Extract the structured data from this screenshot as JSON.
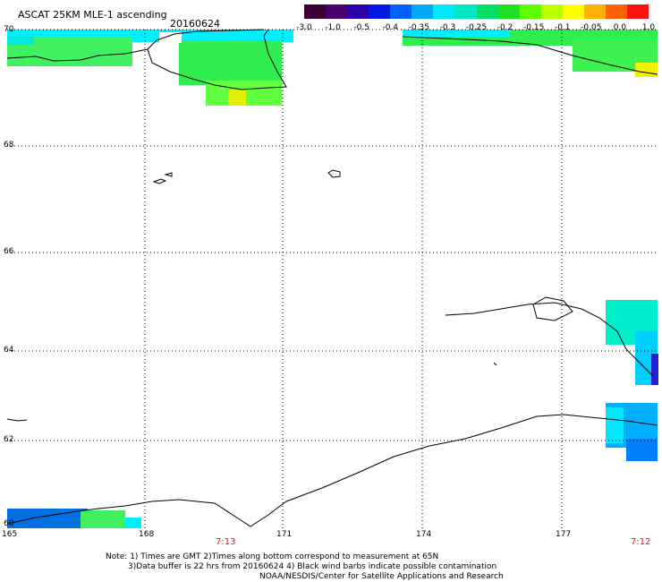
{
  "header": {
    "title": "ASCAT 25KM MLE-1 ascending",
    "date": "20160624"
  },
  "colorbar": {
    "colors": [
      "#3a0033",
      "#4a006a",
      "#2a00a8",
      "#0018e0",
      "#0060ff",
      "#00a8ff",
      "#00e8ff",
      "#00e8c0",
      "#00e060",
      "#20e020",
      "#60ff00",
      "#c0ff00",
      "#ffff00",
      "#ffb000",
      "#ff6000",
      "#ff1010"
    ],
    "labels": [
      "-3.0",
      "-1.0",
      "-0.5",
      "-0.4",
      "-0.35",
      "-0.3",
      "-0.25",
      "-0.2",
      "-0.15",
      "-0.1",
      "-0.05",
      "0.0",
      "1.0"
    ]
  },
  "axes": {
    "lat_labels": [
      "70",
      "68",
      "66",
      "64",
      "62",
      "60"
    ],
    "lon_labels": [
      "165",
      "168",
      "171",
      "174",
      "177"
    ],
    "times": [
      "7:13",
      "7:12"
    ]
  },
  "notes": {
    "line1": "Note: 1) Times are GMT 2)Times along bottom correspond to measurement at 65N",
    "line2": "3)Data buffer is 22 hrs from 20160624 4) Black wind barbs indicate possible contamination",
    "line3": "NOAA/NESDIS/Center for Satellite Applications and Research"
  },
  "palette": {
    "cyan": "#00eeff",
    "green": "#20e040",
    "lightgreen": "#60ff40",
    "yellow": "#f0f000",
    "blue": "#0080ff",
    "darkblue": "#2020d0",
    "midblue": "#00b0ff"
  }
}
